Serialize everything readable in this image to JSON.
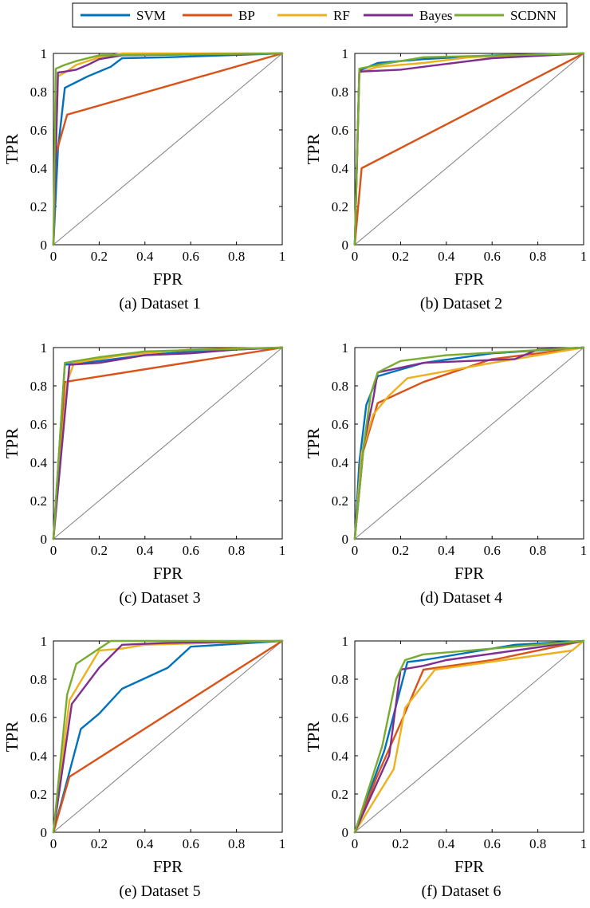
{
  "legend": [
    {
      "name": "SVM",
      "color": "#0072BD"
    },
    {
      "name": "BP",
      "color": "#D95319"
    },
    {
      "name": "RF",
      "color": "#EDB120"
    },
    {
      "name": "Bayes",
      "color": "#7E2F8E"
    },
    {
      "name": "SCDNN",
      "color": "#77AC30"
    }
  ],
  "chart_data": [
    {
      "type": "line",
      "caption": "(a) Dataset 1",
      "xlabel": "FPR",
      "ylabel": "TPR",
      "xlim": [
        0,
        1
      ],
      "ylim": [
        0,
        1
      ],
      "xticks": [
        "0",
        "0.2",
        "0.4",
        "0.6",
        "0.8",
        "1"
      ],
      "yticks": [
        "0",
        "0.2",
        "0.4",
        "0.6",
        "0.8",
        "1"
      ],
      "series": [
        {
          "name": "SVM",
          "x": [
            0,
            0.02,
            0.05,
            0.1,
            0.15,
            0.25,
            0.3,
            0.5,
            1
          ],
          "y": [
            0,
            0.5,
            0.82,
            0.85,
            0.88,
            0.93,
            0.975,
            0.98,
            1
          ]
        },
        {
          "name": "BP",
          "x": [
            0,
            0.01,
            0.06,
            1
          ],
          "y": [
            0,
            0.47,
            0.68,
            1
          ]
        },
        {
          "name": "RF",
          "x": [
            0,
            0.02,
            0.05,
            0.1,
            0.2,
            0.3,
            1
          ],
          "y": [
            0,
            0.88,
            0.9,
            0.94,
            0.98,
            1.0,
            1
          ]
        },
        {
          "name": "Bayes",
          "x": [
            0,
            0.02,
            0.05,
            0.1,
            0.15,
            0.2,
            0.3,
            1
          ],
          "y": [
            0,
            0.9,
            0.905,
            0.915,
            0.94,
            0.97,
            0.99,
            1
          ]
        },
        {
          "name": "SCDNN",
          "x": [
            0,
            0.01,
            0.05,
            0.1,
            0.2,
            1
          ],
          "y": [
            0,
            0.92,
            0.94,
            0.96,
            0.99,
            1
          ]
        }
      ]
    },
    {
      "type": "line",
      "caption": "(b) Dataset 2",
      "xlabel": "FPR",
      "ylabel": "TPR",
      "xlim": [
        0,
        1
      ],
      "ylim": [
        0,
        1
      ],
      "xticks": [
        "0",
        "0.2",
        "0.4",
        "0.6",
        "0.8",
        "1"
      ],
      "yticks": [
        "0",
        "0.2",
        "0.4",
        "0.6",
        "0.8",
        "1"
      ],
      "series": [
        {
          "name": "SVM",
          "x": [
            0,
            0.02,
            0.1,
            0.3,
            0.6,
            1
          ],
          "y": [
            0,
            0.91,
            0.95,
            0.97,
            0.99,
            1
          ]
        },
        {
          "name": "BP",
          "x": [
            0,
            0.03,
            1
          ],
          "y": [
            0,
            0.4,
            1
          ]
        },
        {
          "name": "RF",
          "x": [
            0,
            0.02,
            0.1,
            0.3,
            0.5,
            1
          ],
          "y": [
            0,
            0.9,
            0.93,
            0.95,
            0.98,
            1
          ]
        },
        {
          "name": "Bayes",
          "x": [
            0,
            0.02,
            0.2,
            0.4,
            0.6,
            1
          ],
          "y": [
            0,
            0.905,
            0.915,
            0.945,
            0.975,
            1
          ]
        },
        {
          "name": "SCDNN",
          "x": [
            0,
            0.02,
            0.1,
            0.3,
            1
          ],
          "y": [
            0,
            0.92,
            0.94,
            0.98,
            1
          ]
        }
      ]
    },
    {
      "type": "line",
      "caption": "(c) Dataset 3",
      "xlabel": "FPR",
      "ylabel": "TPR",
      "xlim": [
        0,
        1
      ],
      "ylim": [
        0,
        1
      ],
      "xticks": [
        "0",
        "0.2",
        "0.4",
        "0.6",
        "0.8",
        "1"
      ],
      "yticks": [
        "0",
        "0.2",
        "0.4",
        "0.6",
        "0.8",
        "1"
      ],
      "series": [
        {
          "name": "SVM",
          "x": [
            0,
            0.05,
            0.2,
            0.4,
            0.6,
            1
          ],
          "y": [
            0,
            0.91,
            0.93,
            0.96,
            0.98,
            1
          ]
        },
        {
          "name": "BP",
          "x": [
            0,
            0.05,
            0.1,
            1
          ],
          "y": [
            0,
            0.82,
            0.83,
            1
          ]
        },
        {
          "name": "RF",
          "x": [
            0,
            0.06,
            0.09,
            0.3,
            0.6,
            1
          ],
          "y": [
            0,
            0.82,
            0.92,
            0.96,
            0.99,
            1
          ]
        },
        {
          "name": "Bayes",
          "x": [
            0,
            0.07,
            0.2,
            0.4,
            0.6,
            0.8,
            1
          ],
          "y": [
            0,
            0.91,
            0.92,
            0.96,
            0.97,
            0.99,
            1
          ]
        },
        {
          "name": "SCDNN",
          "x": [
            0,
            0.05,
            0.2,
            0.4,
            1
          ],
          "y": [
            0,
            0.92,
            0.95,
            0.98,
            1
          ]
        }
      ]
    },
    {
      "type": "line",
      "caption": "(d) Dataset 4",
      "xlabel": "FPR",
      "ylabel": "TPR",
      "xlim": [
        0,
        1
      ],
      "ylim": [
        0,
        1
      ],
      "xticks": [
        "0",
        "0.2",
        "0.4",
        "0.6",
        "0.8",
        "1"
      ],
      "yticks": [
        "0",
        "0.2",
        "0.4",
        "0.6",
        "0.8",
        "1"
      ],
      "series": [
        {
          "name": "SVM",
          "x": [
            0,
            0.02,
            0.05,
            0.1,
            0.3,
            0.6,
            1
          ],
          "y": [
            0,
            0.4,
            0.7,
            0.85,
            0.92,
            0.97,
            1
          ]
        },
        {
          "name": "BP",
          "x": [
            0,
            0.03,
            0.1,
            0.3,
            0.6,
            1
          ],
          "y": [
            0,
            0.43,
            0.71,
            0.82,
            0.94,
            1
          ]
        },
        {
          "name": "RF",
          "x": [
            0,
            0.03,
            0.08,
            0.15,
            0.23,
            0.6,
            1
          ],
          "y": [
            0,
            0.45,
            0.65,
            0.75,
            0.84,
            0.92,
            1
          ]
        },
        {
          "name": "Bayes",
          "x": [
            0,
            0.04,
            0.08,
            0.1,
            0.3,
            0.7,
            0.8,
            1
          ],
          "y": [
            0,
            0.5,
            0.73,
            0.87,
            0.92,
            0.94,
            0.99,
            1
          ]
        },
        {
          "name": "SCDNN",
          "x": [
            0,
            0.04,
            0.07,
            0.1,
            0.2,
            0.4,
            1
          ],
          "y": [
            0,
            0.5,
            0.76,
            0.87,
            0.93,
            0.96,
            1
          ]
        }
      ]
    },
    {
      "type": "line",
      "caption": "(e) Dataset 5",
      "xlabel": "FPR",
      "ylabel": "TPR",
      "xlim": [
        0,
        1
      ],
      "ylim": [
        0,
        1
      ],
      "xticks": [
        "0",
        "0.2",
        "0.4",
        "0.6",
        "0.8",
        "1"
      ],
      "yticks": [
        "0",
        "0.2",
        "0.4",
        "0.6",
        "0.8",
        "1"
      ],
      "series": [
        {
          "name": "SVM",
          "x": [
            0,
            0.12,
            0.2,
            0.3,
            0.5,
            0.6,
            1
          ],
          "y": [
            0,
            0.54,
            0.62,
            0.75,
            0.86,
            0.97,
            1
          ]
        },
        {
          "name": "BP",
          "x": [
            0,
            0.07,
            1
          ],
          "y": [
            0,
            0.29,
            1
          ]
        },
        {
          "name": "RF",
          "x": [
            0,
            0.07,
            0.2,
            0.3,
            0.4,
            1
          ],
          "y": [
            0,
            0.69,
            0.95,
            0.96,
            0.98,
            1
          ]
        },
        {
          "name": "Bayes",
          "x": [
            0,
            0.08,
            0.2,
            0.3,
            0.5,
            1
          ],
          "y": [
            0,
            0.67,
            0.86,
            0.98,
            0.99,
            1
          ]
        },
        {
          "name": "SCDNN",
          "x": [
            0,
            0.06,
            0.1,
            0.25,
            1
          ],
          "y": [
            0,
            0.72,
            0.88,
            1.0,
            1
          ]
        }
      ]
    },
    {
      "type": "line",
      "caption": "(f) Dataset 6",
      "xlabel": "FPR",
      "ylabel": "TPR",
      "xlim": [
        0,
        1
      ],
      "ylim": [
        0,
        1
      ],
      "xticks": [
        "0",
        "0.2",
        "0.4",
        "0.6",
        "0.8",
        "1"
      ],
      "yticks": [
        "0",
        "0.2",
        "0.4",
        "0.6",
        "0.8",
        "1"
      ],
      "series": [
        {
          "name": "SVM",
          "x": [
            0,
            0.13,
            0.23,
            0.3,
            0.7,
            1
          ],
          "y": [
            0,
            0.43,
            0.89,
            0.9,
            0.98,
            1
          ]
        },
        {
          "name": "BP",
          "x": [
            0,
            0.1,
            0.2,
            0.3,
            0.6,
            1
          ],
          "y": [
            0,
            0.3,
            0.57,
            0.85,
            0.9,
            1
          ]
        },
        {
          "name": "RF",
          "x": [
            0,
            0.17,
            0.22,
            0.35,
            0.95,
            1
          ],
          "y": [
            0,
            0.33,
            0.65,
            0.85,
            0.95,
            1
          ]
        },
        {
          "name": "Bayes",
          "x": [
            0,
            0.15,
            0.2,
            0.3,
            0.4,
            1
          ],
          "y": [
            0,
            0.4,
            0.85,
            0.87,
            0.9,
            1
          ]
        },
        {
          "name": "SCDNN",
          "x": [
            0,
            0.12,
            0.18,
            0.22,
            0.3,
            1
          ],
          "y": [
            0,
            0.45,
            0.8,
            0.9,
            0.93,
            1
          ]
        }
      ]
    }
  ]
}
